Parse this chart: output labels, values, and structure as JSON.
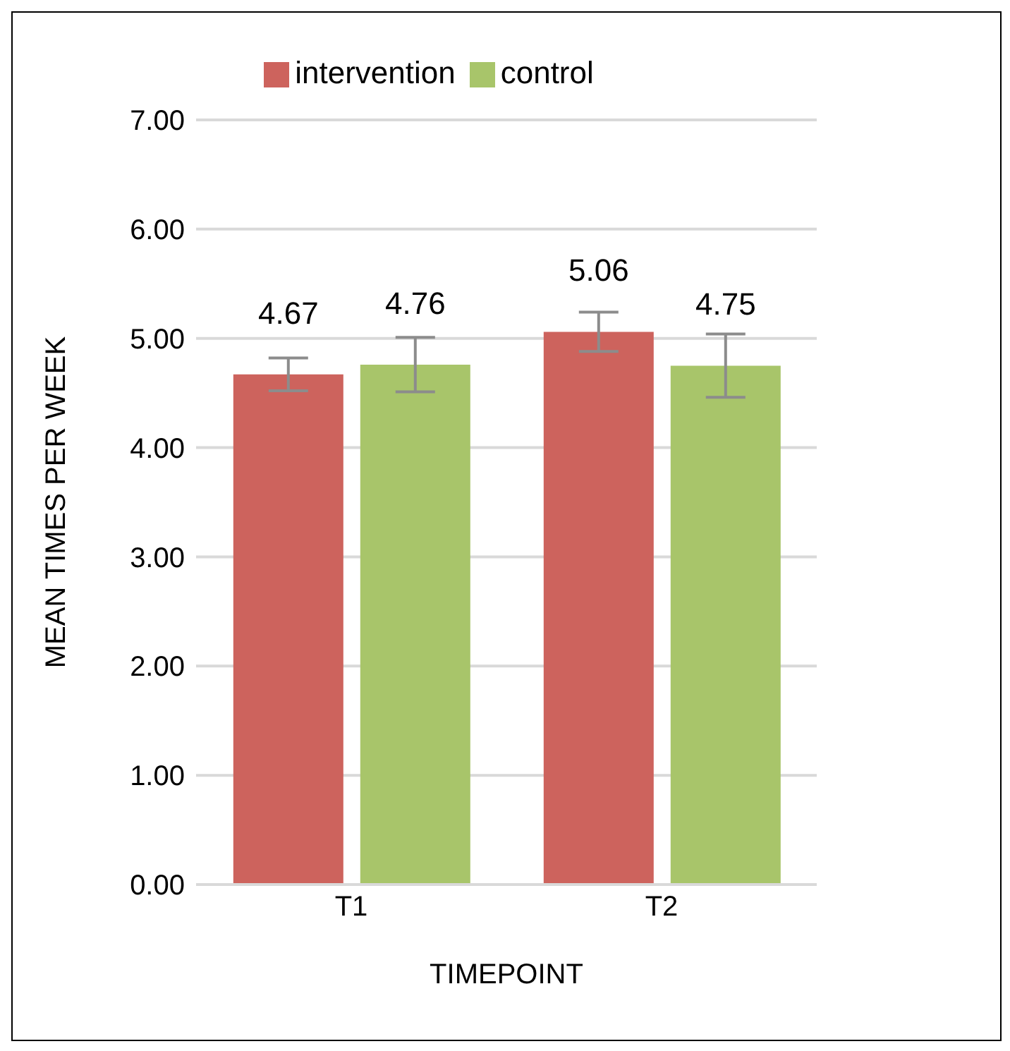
{
  "chart_data": {
    "type": "bar",
    "categories": [
      "T1",
      "T2"
    ],
    "series": [
      {
        "name": "intervention",
        "color": "#cd635d",
        "values": [
          4.67,
          5.06
        ],
        "errors": [
          0.15,
          0.18
        ]
      },
      {
        "name": "control",
        "color": "#a8c56a",
        "values": [
          4.76,
          4.75
        ],
        "errors": [
          0.25,
          0.29
        ]
      }
    ],
    "xlabel": "TIMEPOINT",
    "ylabel": "MEAN TIMES PER WEEK",
    "ylim": [
      0,
      7
    ],
    "yticks": [
      {
        "value": 0,
        "label": "0.00"
      },
      {
        "value": 1,
        "label": "1.00"
      },
      {
        "value": 2,
        "label": "2.00"
      },
      {
        "value": 3,
        "label": "3.00"
      },
      {
        "value": 4,
        "label": "4.00"
      },
      {
        "value": 5,
        "label": "5.00"
      },
      {
        "value": 6,
        "label": "6.00"
      },
      {
        "value": 7,
        "label": "7.00"
      }
    ],
    "grid": "y",
    "legend": "top",
    "data_labels": true
  }
}
